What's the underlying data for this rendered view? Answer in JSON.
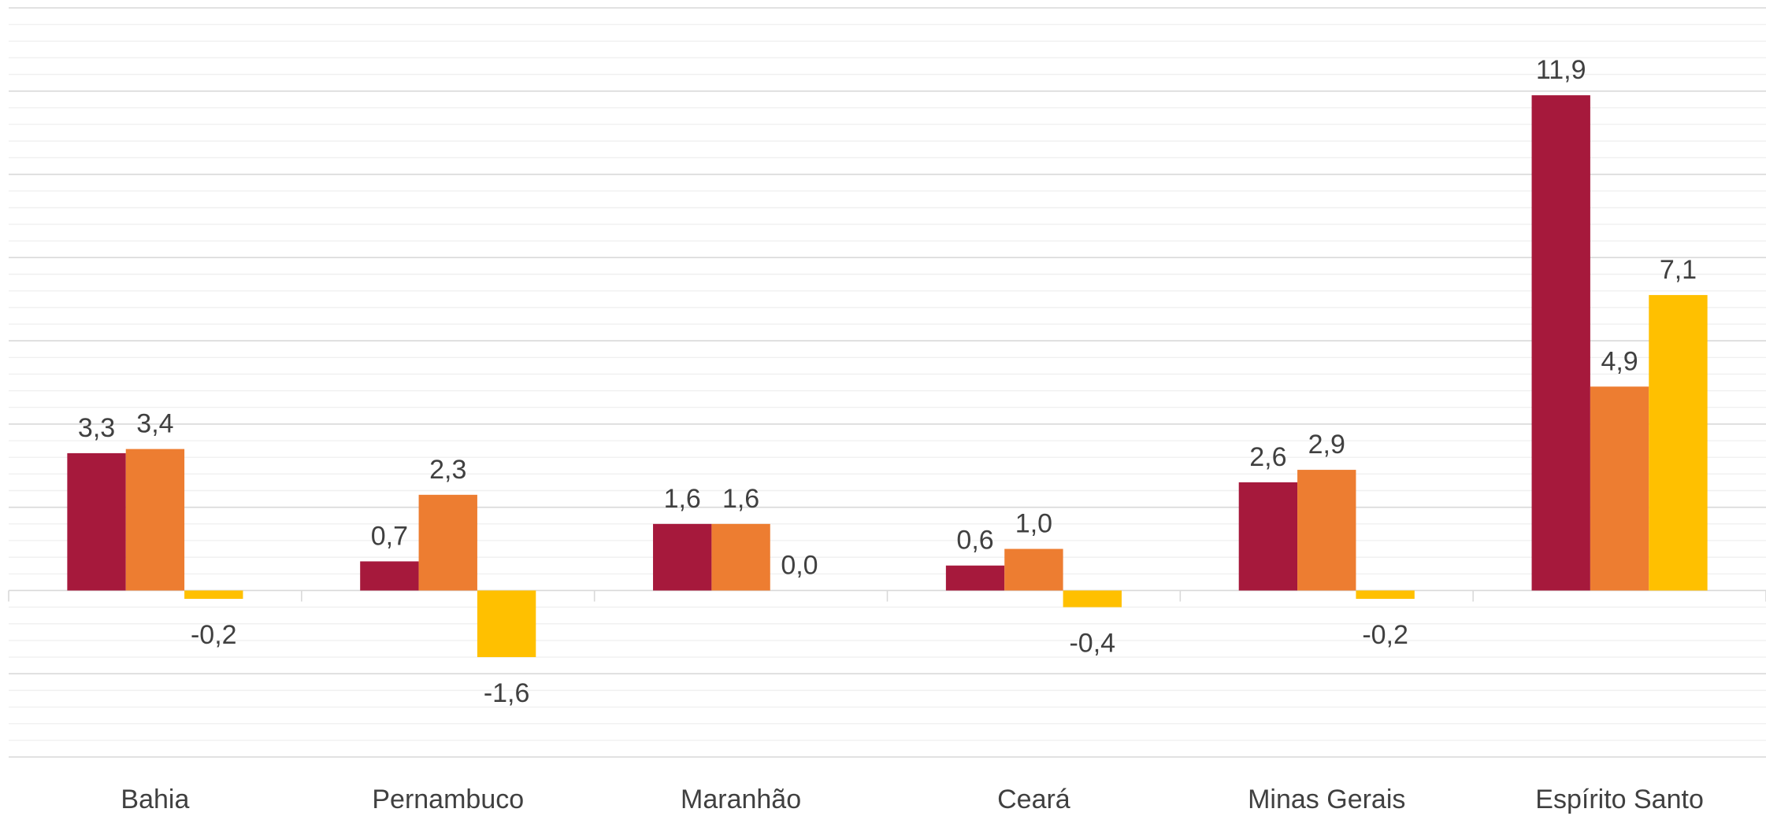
{
  "chart_data": {
    "type": "bar",
    "categories": [
      "Bahia",
      "Pernambuco",
      "Maranhão",
      "Ceará",
      "Minas Gerais",
      "Espírito Santo"
    ],
    "series": [
      {
        "color": "#a6193c",
        "values": [
          3.3,
          0.7,
          1.6,
          0.6,
          2.6,
          11.9
        ],
        "value_labels": [
          "3,3",
          "0,7",
          "1,6",
          "0,6",
          "2,6",
          "11,9"
        ]
      },
      {
        "color": "#ed7d31",
        "values": [
          3.4,
          2.3,
          1.6,
          1.0,
          2.9,
          4.9
        ],
        "value_labels": [
          "3,4",
          "2,3",
          "1,6",
          "1,0",
          "2,9",
          "4,9"
        ]
      },
      {
        "color": "#ffc000",
        "values": [
          -0.2,
          -1.6,
          0.0,
          -0.4,
          -0.2,
          7.1
        ],
        "value_labels": [
          "-0,2",
          "-1,6",
          "0,0",
          "-0,4",
          "-0,2",
          "7,1"
        ]
      }
    ],
    "ylim": [
      -4,
      14
    ],
    "yticks": [
      -4,
      -2,
      0,
      2,
      4,
      6,
      8,
      10,
      12,
      14
    ],
    "yminorticks": [
      -3.6,
      -3.2,
      -2.8,
      -2.4,
      -1.6,
      -1.2,
      -0.8,
      -0.4,
      0.4,
      0.8,
      1.2,
      1.6,
      2.4,
      2.8,
      3.2,
      3.6,
      4.4,
      4.8,
      5.2,
      5.6,
      6.4,
      6.8,
      7.2,
      7.6,
      8.4,
      8.8,
      9.2,
      9.6,
      10.4,
      10.8,
      11.2,
      11.6,
      12.4,
      12.8,
      13.2,
      13.6
    ],
    "grid": true
  }
}
